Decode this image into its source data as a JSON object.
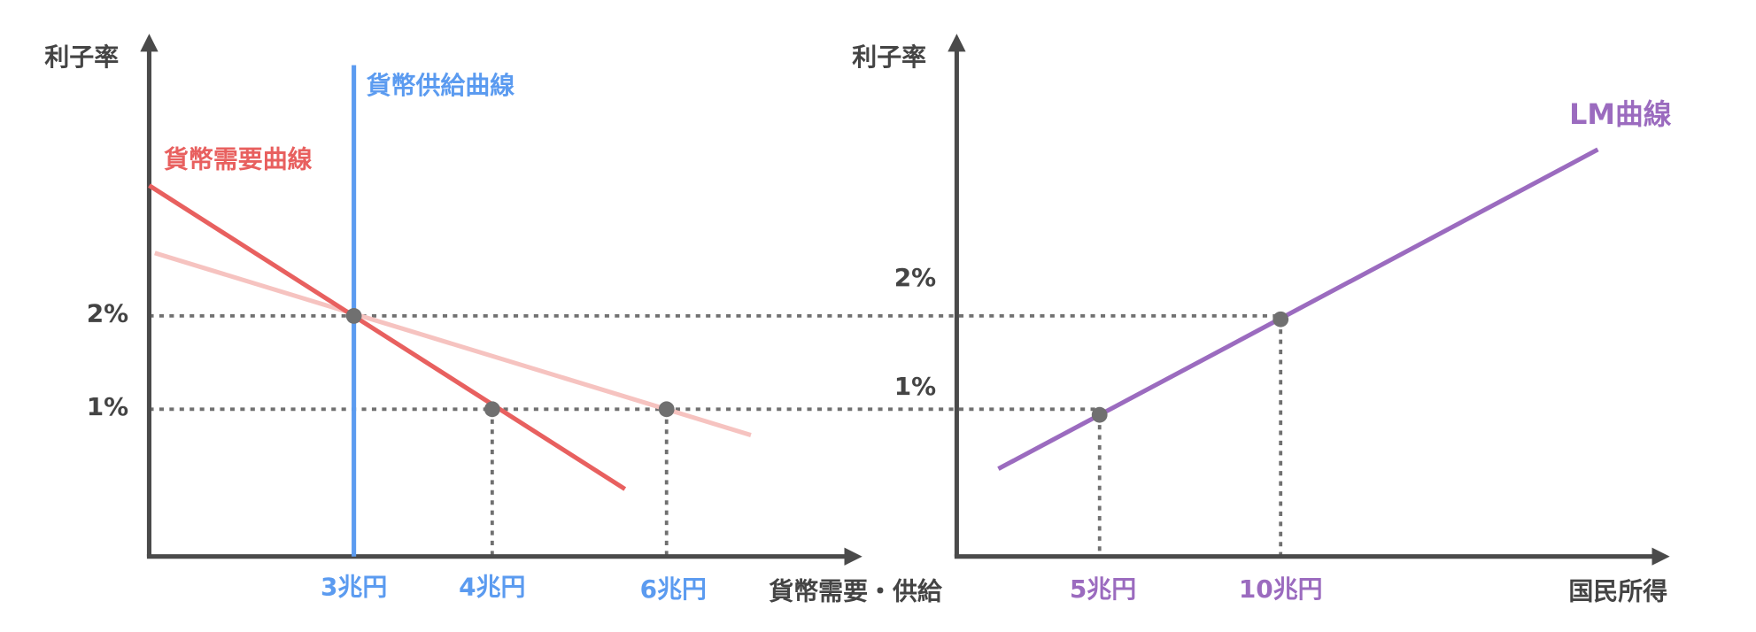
{
  "left_panel": {
    "y_axis_label": "利子率",
    "x_axis_label": "貨幣需要・供給",
    "y_ticks": [
      "2%",
      "1%"
    ],
    "x_ticks": [
      "3兆円",
      "4兆円",
      "6兆円"
    ],
    "supply_label": "貨幣供給曲線",
    "demand_label": "貨幣需要曲線"
  },
  "right_panel": {
    "y_axis_label": "利子率",
    "x_axis_label": "国民所得",
    "y_ticks": [
      "2%",
      "1%"
    ],
    "x_ticks": [
      "5兆円",
      "10兆円"
    ],
    "curve_label": "LM曲線"
  }
}
